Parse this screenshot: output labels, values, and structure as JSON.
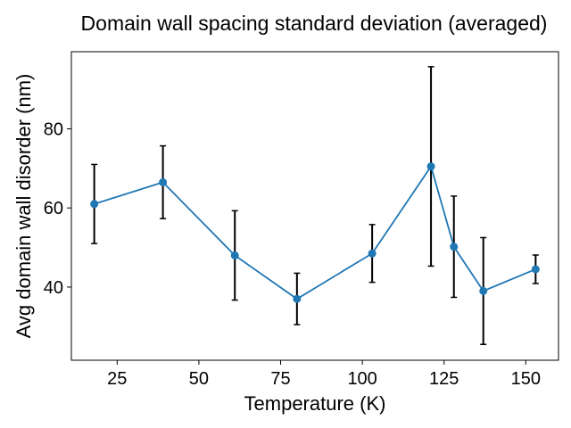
{
  "chart_data": {
    "type": "line",
    "title": "Domain wall spacing standard deviation (averaged)",
    "xlabel": "Temperature (K)",
    "ylabel": "Avg domain wall disorder (nm)",
    "xlim": [
      11,
      160
    ],
    "ylim": [
      21.5,
      99.5
    ],
    "xticks": [
      25,
      50,
      75,
      100,
      125,
      150
    ],
    "yticks": [
      40,
      60,
      80
    ],
    "grid": false,
    "legend": "none",
    "series": [
      {
        "x": [
          18,
          39,
          61,
          80,
          103,
          121,
          128,
          137,
          153
        ],
        "y": [
          61.0,
          66.5,
          48.0,
          37.0,
          48.5,
          70.5,
          50.2,
          39.0,
          44.5
        ],
        "yerr": [
          10.0,
          9.2,
          11.3,
          6.5,
          7.3,
          25.2,
          12.8,
          13.5,
          3.6
        ],
        "color": "#1f77b4",
        "errorbar_color": "#000000"
      }
    ]
  }
}
